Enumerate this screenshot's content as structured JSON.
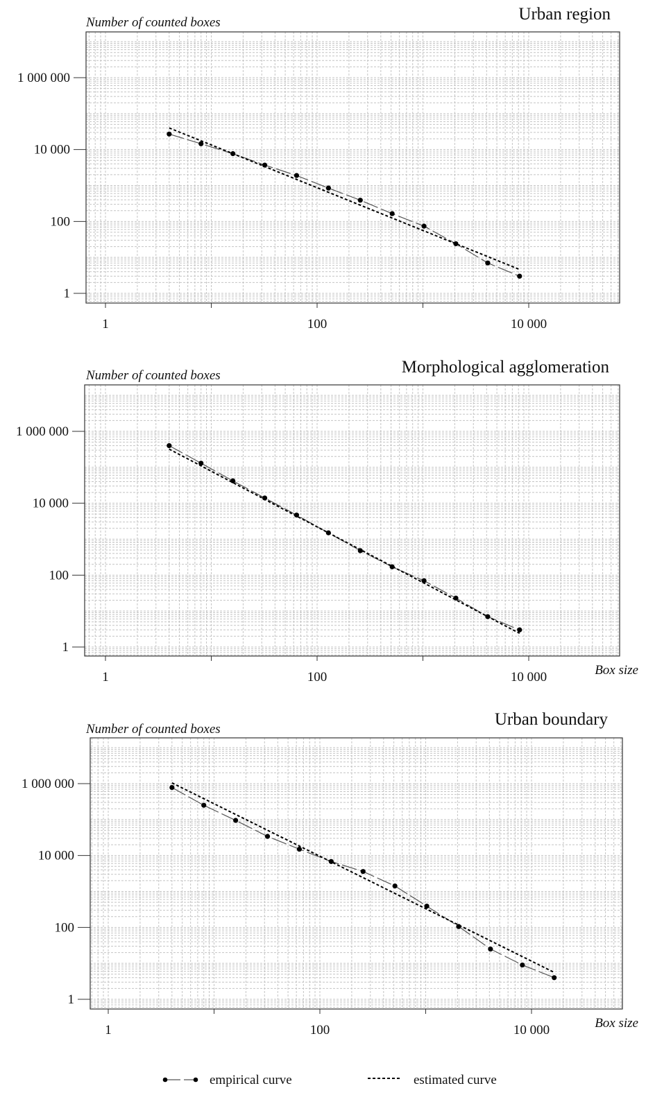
{
  "colors": {
    "grid": "#c4c4c4",
    "frame": "#333333",
    "empirical": "#555555",
    "estimated": "#000000",
    "text": "#111111"
  },
  "legend": {
    "empirical_label": "empirical curve",
    "estimated_label": "estimated curve"
  },
  "chart_data": [
    {
      "type": "line",
      "title": "Urban region",
      "ylabel": "Number of counted boxes",
      "xlabel": "",
      "x_scale": "log",
      "y_scale": "log",
      "xlim": [
        0.4,
        60000
      ],
      "ylim": [
        0.6,
        20000000
      ],
      "x_ticks": [
        {
          "value": 1,
          "label": "1"
        },
        {
          "value": 100,
          "label": "100"
        },
        {
          "value": 10000,
          "label": "10 000"
        }
      ],
      "y_ticks": [
        {
          "value": 1,
          "label": "1"
        },
        {
          "value": 100,
          "label": "100"
        },
        {
          "value": 10000,
          "label": "10 000"
        },
        {
          "value": 1000000,
          "label": "1 000 000"
        }
      ],
      "grid": true,
      "series": [
        {
          "name": "empirical curve",
          "style": "dashed-points",
          "x": [
            4,
            8,
            16,
            32,
            64,
            128,
            256,
            512,
            1024,
            2048,
            4096,
            8192
          ],
          "y": [
            27000,
            14500,
            7700,
            3700,
            1900,
            850,
            390,
            165,
            74,
            24,
            7,
            3
          ]
        },
        {
          "name": "estimated curve",
          "style": "dotted",
          "x": [
            4,
            8192
          ],
          "y": [
            40000,
            4.6
          ]
        }
      ]
    },
    {
      "type": "line",
      "title": "Morphological agglomeration",
      "ylabel": "Number of counted boxes",
      "xlabel": "Box size",
      "x_scale": "log",
      "y_scale": "log",
      "xlim": [
        0.4,
        60000
      ],
      "ylim": [
        0.6,
        20000000
      ],
      "x_ticks": [
        {
          "value": 1,
          "label": "1"
        },
        {
          "value": 100,
          "label": "100"
        },
        {
          "value": 10000,
          "label": "10 000"
        }
      ],
      "y_ticks": [
        {
          "value": 1,
          "label": "1"
        },
        {
          "value": 100,
          "label": "100"
        },
        {
          "value": 10000,
          "label": "10 000"
        },
        {
          "value": 1000000,
          "label": "1 000 000"
        }
      ],
      "grid": true,
      "series": [
        {
          "name": "empirical curve",
          "style": "dashed-points",
          "x": [
            4,
            8,
            16,
            32,
            64,
            128,
            256,
            512,
            1024,
            2048,
            4096,
            8192
          ],
          "y": [
            400000,
            130000,
            42000,
            14000,
            4700,
            1500,
            480,
            170,
            70,
            23,
            7,
            3
          ]
        },
        {
          "name": "estimated curve",
          "style": "dotted",
          "x": [
            4,
            8192
          ],
          "y": [
            320000,
            2.4
          ]
        }
      ]
    },
    {
      "type": "line",
      "title": "Urban boundary",
      "ylabel": "Number of counted boxes",
      "xlabel": "Box size",
      "x_scale": "log",
      "y_scale": "log",
      "xlim": [
        0.4,
        60000
      ],
      "ylim": [
        0.6,
        20000000
      ],
      "x_ticks": [
        {
          "value": 1,
          "label": "1"
        },
        {
          "value": 100,
          "label": "100"
        },
        {
          "value": 10000,
          "label": "10 000"
        }
      ],
      "y_ticks": [
        {
          "value": 1,
          "label": "1"
        },
        {
          "value": 100,
          "label": "100"
        },
        {
          "value": 10000,
          "label": "10 000"
        },
        {
          "value": 1000000,
          "label": "1 000 000"
        }
      ],
      "grid": true,
      "series": [
        {
          "name": "empirical curve",
          "style": "dashed-points",
          "x": [
            4,
            8,
            16,
            32,
            64,
            128,
            256,
            512,
            1024,
            2048,
            4096,
            8192,
            16384
          ],
          "y": [
            780000,
            250000,
            95000,
            34000,
            15000,
            6800,
            3600,
            1420,
            390,
            106,
            25,
            9,
            4
          ]
        },
        {
          "name": "estimated curve",
          "style": "dotted",
          "x": [
            4,
            16384
          ],
          "y": [
            1050000,
            5.6
          ]
        }
      ]
    }
  ]
}
